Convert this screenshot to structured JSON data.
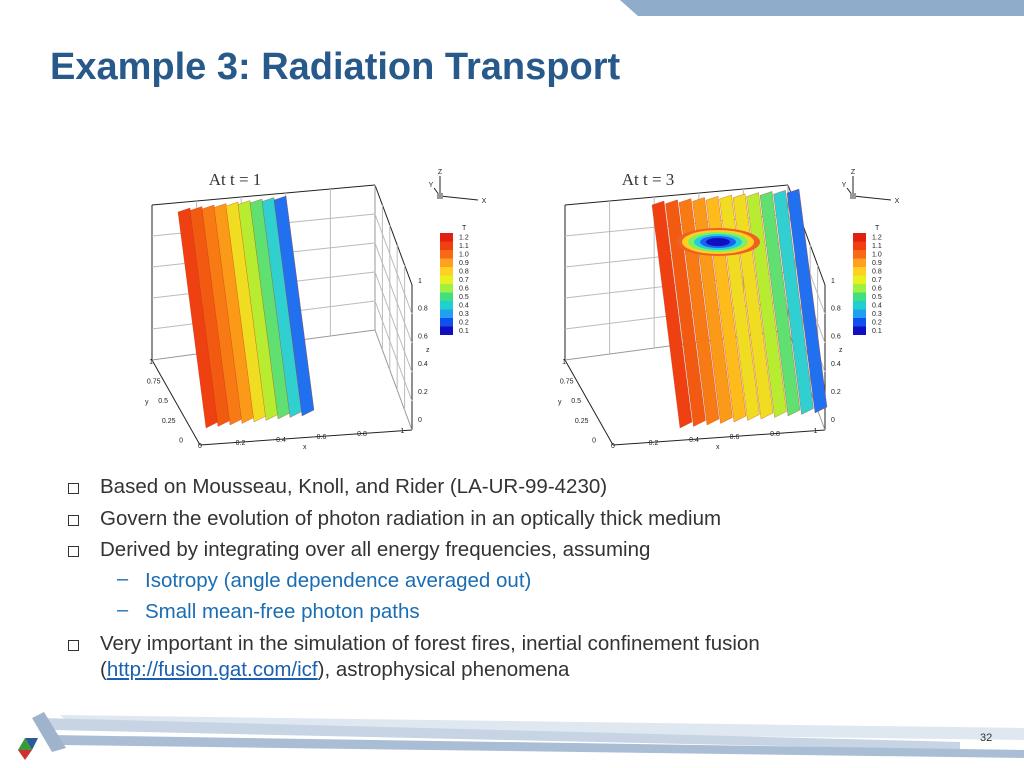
{
  "title": "Example 3: Radiation Transport",
  "figures": [
    {
      "caption": "At t  = 1",
      "triad": [
        "Z",
        "Y",
        "X"
      ],
      "legend": {
        "title": "T",
        "labels": [
          "1.2",
          "1.1",
          "1.0",
          "0.9",
          "0.8",
          "0.7",
          "0.6",
          "0.5",
          "0.4",
          "0.3",
          "0.2",
          "0.1"
        ]
      },
      "z_ticks": [
        "1",
        "0.8",
        "0.6",
        "0.4",
        "0.2",
        "0"
      ],
      "y_ticks": [
        "1",
        "0.75",
        "0.5",
        "0.25",
        "0"
      ],
      "x_ticks": [
        "0",
        "0.2",
        "0.4",
        "0.6",
        "0.8",
        "1"
      ],
      "x_label": "x",
      "y_label": "y",
      "z_label": "z"
    },
    {
      "caption": "At t  = 3",
      "triad": [
        "Z",
        "Y",
        "X"
      ],
      "legend": {
        "title": "T",
        "labels": [
          "1.2",
          "1.1",
          "1.0",
          "0.9",
          "0.8",
          "0.7",
          "0.6",
          "0.5",
          "0.4",
          "0.3",
          "0.2",
          "0.1"
        ]
      },
      "z_ticks": [
        "1",
        "0.8",
        "0.6",
        "0.4",
        "0.2",
        "0"
      ],
      "y_ticks": [
        "1",
        "0.75",
        "0.5",
        "0.25",
        "0"
      ],
      "x_ticks": [
        "0",
        "0.2",
        "0.4",
        "0.6",
        "0.8",
        "1"
      ],
      "x_label": "x",
      "y_label": "y",
      "z_label": "z"
    }
  ],
  "bullets": [
    {
      "text": "Based on Mousseau, Knoll, and Rider (LA-UR-99-4230)"
    },
    {
      "text": "Govern the evolution of photon radiation in an optically thick medium"
    },
    {
      "text": "Derived by integrating over all energy frequencies, assuming",
      "sub": [
        "Isotropy (angle dependence averaged out)",
        "Small mean-free photon paths"
      ]
    },
    {
      "text_before": "Very important in the simulation of forest fires, inertial confinement fusion (",
      "link": "http://fusion.gat.com/icf",
      "text_after": "), astrophysical phenomena"
    }
  ],
  "page_number": "32"
}
